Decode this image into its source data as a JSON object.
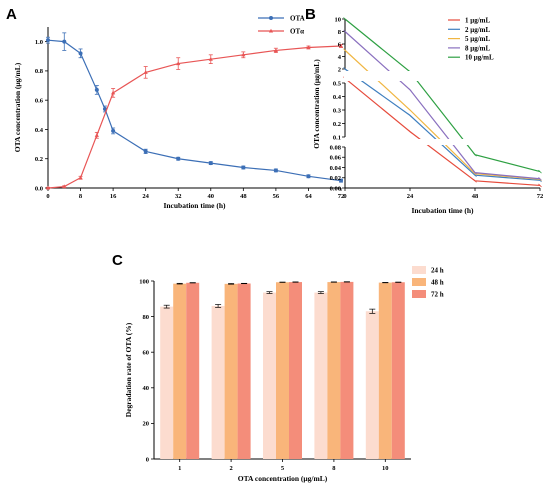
{
  "chart_data": [
    {
      "panel": "A",
      "type": "line",
      "xlabel": "Incubation time (h)",
      "ylabel": "OTA concentration (μg/mL)",
      "xlim": [
        0,
        72
      ],
      "ylim": [
        0,
        1.1
      ],
      "xticks": [
        0,
        8,
        16,
        24,
        32,
        40,
        48,
        56,
        64,
        72
      ],
      "yticks": [
        0.0,
        0.2,
        0.4,
        0.6,
        0.8,
        1.0
      ],
      "legend_position": "top-right",
      "series": [
        {
          "name": "OTA",
          "color": "#3c6fb6",
          "marker": "circle",
          "x": [
            0,
            4,
            8,
            12,
            14,
            16,
            24,
            32,
            40,
            48,
            56,
            64,
            72
          ],
          "y": [
            1.01,
            1.0,
            0.92,
            0.67,
            0.54,
            0.39,
            0.25,
            0.2,
            0.17,
            0.14,
            0.12,
            0.08,
            0.05
          ],
          "err": [
            0.02,
            0.06,
            0.03,
            0.03,
            0.02,
            0.02,
            0.015,
            0.01,
            0.01,
            0.01,
            0.01,
            0.01,
            0.01
          ]
        },
        {
          "name": "OTα",
          "color": "#e85555",
          "marker": "triangle",
          "x": [
            0,
            4,
            8,
            12,
            16,
            24,
            32,
            40,
            48,
            56,
            64,
            72
          ],
          "y": [
            0.0,
            0.01,
            0.07,
            0.36,
            0.65,
            0.79,
            0.85,
            0.88,
            0.91,
            0.94,
            0.96,
            0.97
          ],
          "err": [
            0.005,
            0.005,
            0.01,
            0.02,
            0.03,
            0.04,
            0.04,
            0.03,
            0.02,
            0.015,
            0.01,
            0.01
          ]
        }
      ]
    },
    {
      "panel": "B",
      "type": "line",
      "xlabel": "Incubation time (h)",
      "ylabel": "OTA concentration (μg/mL)",
      "xticks": [
        0,
        24,
        48,
        72
      ],
      "legend_position": "right",
      "y_segments": [
        {
          "ylim": [
            2,
            10
          ],
          "ticks": [
            2,
            4,
            6,
            8,
            10
          ]
        },
        {
          "ylim": [
            0.1,
            0.5
          ],
          "ticks": [
            0.1,
            0.2,
            0.3,
            0.4,
            0.5
          ]
        },
        {
          "ylim": [
            0.0,
            0.08
          ],
          "ticks": [
            0.0,
            0.02,
            0.04,
            0.06,
            0.08
          ]
        }
      ],
      "x": [
        0,
        24,
        48,
        72
      ],
      "series": [
        {
          "name": "1 μg/mL",
          "color": "#e64b3c",
          "values": [
            1.0,
            0.14,
            0.014,
            0.005
          ]
        },
        {
          "name": "2 μg/mL",
          "color": "#3f7fbf",
          "values": [
            2.0,
            0.26,
            0.025,
            0.015
          ]
        },
        {
          "name": "5 μg/mL",
          "color": "#f0b642",
          "values": [
            5.0,
            0.3,
            0.028,
            0.017
          ]
        },
        {
          "name": "8 μg/mL",
          "color": "#8a70bf",
          "values": [
            8.0,
            0.45,
            0.03,
            0.018
          ]
        },
        {
          "name": "10 μg/mL",
          "color": "#2ea043",
          "values": [
            10.0,
            1.7,
            0.065,
            0.032
          ]
        }
      ]
    },
    {
      "panel": "C",
      "type": "bar",
      "xlabel": "OTA concentration (μg/mL)",
      "ylabel": "Degradation rate of OTA (%)",
      "ylim": [
        0,
        100
      ],
      "yticks": [
        0,
        20,
        40,
        60,
        80,
        100
      ],
      "categories": [
        "1",
        "2",
        "5",
        "8",
        "10"
      ],
      "legend_position": "top-right",
      "series": [
        {
          "name": "24 h",
          "color": "#fcdccf",
          "values": [
            85.6,
            86.0,
            93.5,
            93.5,
            83.0
          ],
          "err": [
            0.8,
            0.8,
            0.5,
            0.5,
            1.2
          ]
        },
        {
          "name": "48 h",
          "color": "#f9b57a",
          "values": [
            98.5,
            98.4,
            99.3,
            99.4,
            99.1
          ],
          "err": [
            0.2,
            0.2,
            0.1,
            0.1,
            0.1
          ]
        },
        {
          "name": "72 h",
          "color": "#f48d7a",
          "values": [
            99.0,
            98.6,
            99.4,
            99.5,
            99.3
          ],
          "err": [
            0.1,
            0.1,
            0.1,
            0.1,
            0.1
          ]
        }
      ]
    }
  ]
}
